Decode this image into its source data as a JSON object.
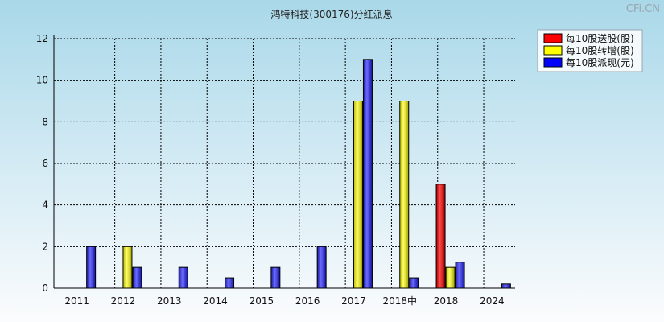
{
  "watermark": "CFi.CN",
  "chart_data": {
    "type": "bar",
    "title": "鸿特科技(300176)分红派息",
    "xlabel": "",
    "ylabel": "",
    "categories": [
      "2011",
      "2012",
      "2013",
      "2014",
      "2015",
      "2016",
      "2017",
      "2018中",
      "2018",
      "2024"
    ],
    "ylim": [
      0,
      12
    ],
    "yticks": [
      0,
      2,
      4,
      6,
      8,
      10,
      12
    ],
    "grid": true,
    "legend_position": "top-right",
    "series": [
      {
        "name": "每10股送股(股)",
        "color": "#ff0000",
        "values": [
          0,
          0,
          0,
          0,
          0,
          0,
          0,
          0,
          5,
          0
        ]
      },
      {
        "name": "每10股转增(股)",
        "color": "#ffff00",
        "values": [
          0,
          2,
          0,
          0,
          0,
          0,
          9,
          9,
          1,
          0
        ]
      },
      {
        "name": "每10股派现(元)",
        "color": "#0000ff",
        "values": [
          2,
          1,
          1,
          0.5,
          1,
          2,
          11,
          0.5,
          1.25,
          0.2
        ]
      }
    ]
  }
}
